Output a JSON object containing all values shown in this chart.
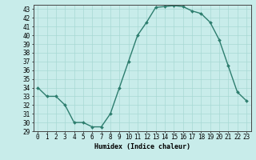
{
  "x": [
    0,
    1,
    2,
    3,
    4,
    5,
    6,
    7,
    8,
    9,
    10,
    11,
    12,
    13,
    14,
    15,
    16,
    17,
    18,
    19,
    20,
    21,
    22,
    23
  ],
  "y": [
    34,
    33,
    33,
    32,
    30,
    30,
    29.5,
    29.5,
    31,
    34,
    37,
    40,
    41.5,
    43.2,
    43.3,
    43.4,
    43.3,
    42.8,
    42.5,
    41.5,
    39.5,
    36.5,
    33.5,
    32.5
  ],
  "line_color": "#2d7d6e",
  "marker_color": "#2d7d6e",
  "bg_color": "#c8ecea",
  "grid_color": "#a8d8d4",
  "xlabel": "Humidex (Indice chaleur)",
  "xlabel_fontsize": 6.0,
  "tick_fontsize": 5.5,
  "ylim": [
    29,
    43.5
  ],
  "xlim": [
    -0.5,
    23.5
  ],
  "yticks": [
    29,
    30,
    31,
    32,
    33,
    34,
    35,
    36,
    37,
    38,
    39,
    40,
    41,
    42,
    43
  ],
  "xticks": [
    0,
    1,
    2,
    3,
    4,
    5,
    6,
    7,
    8,
    9,
    10,
    11,
    12,
    13,
    14,
    15,
    16,
    17,
    18,
    19,
    20,
    21,
    22,
    23
  ],
  "marker_size": 2.0,
  "line_width": 1.0
}
